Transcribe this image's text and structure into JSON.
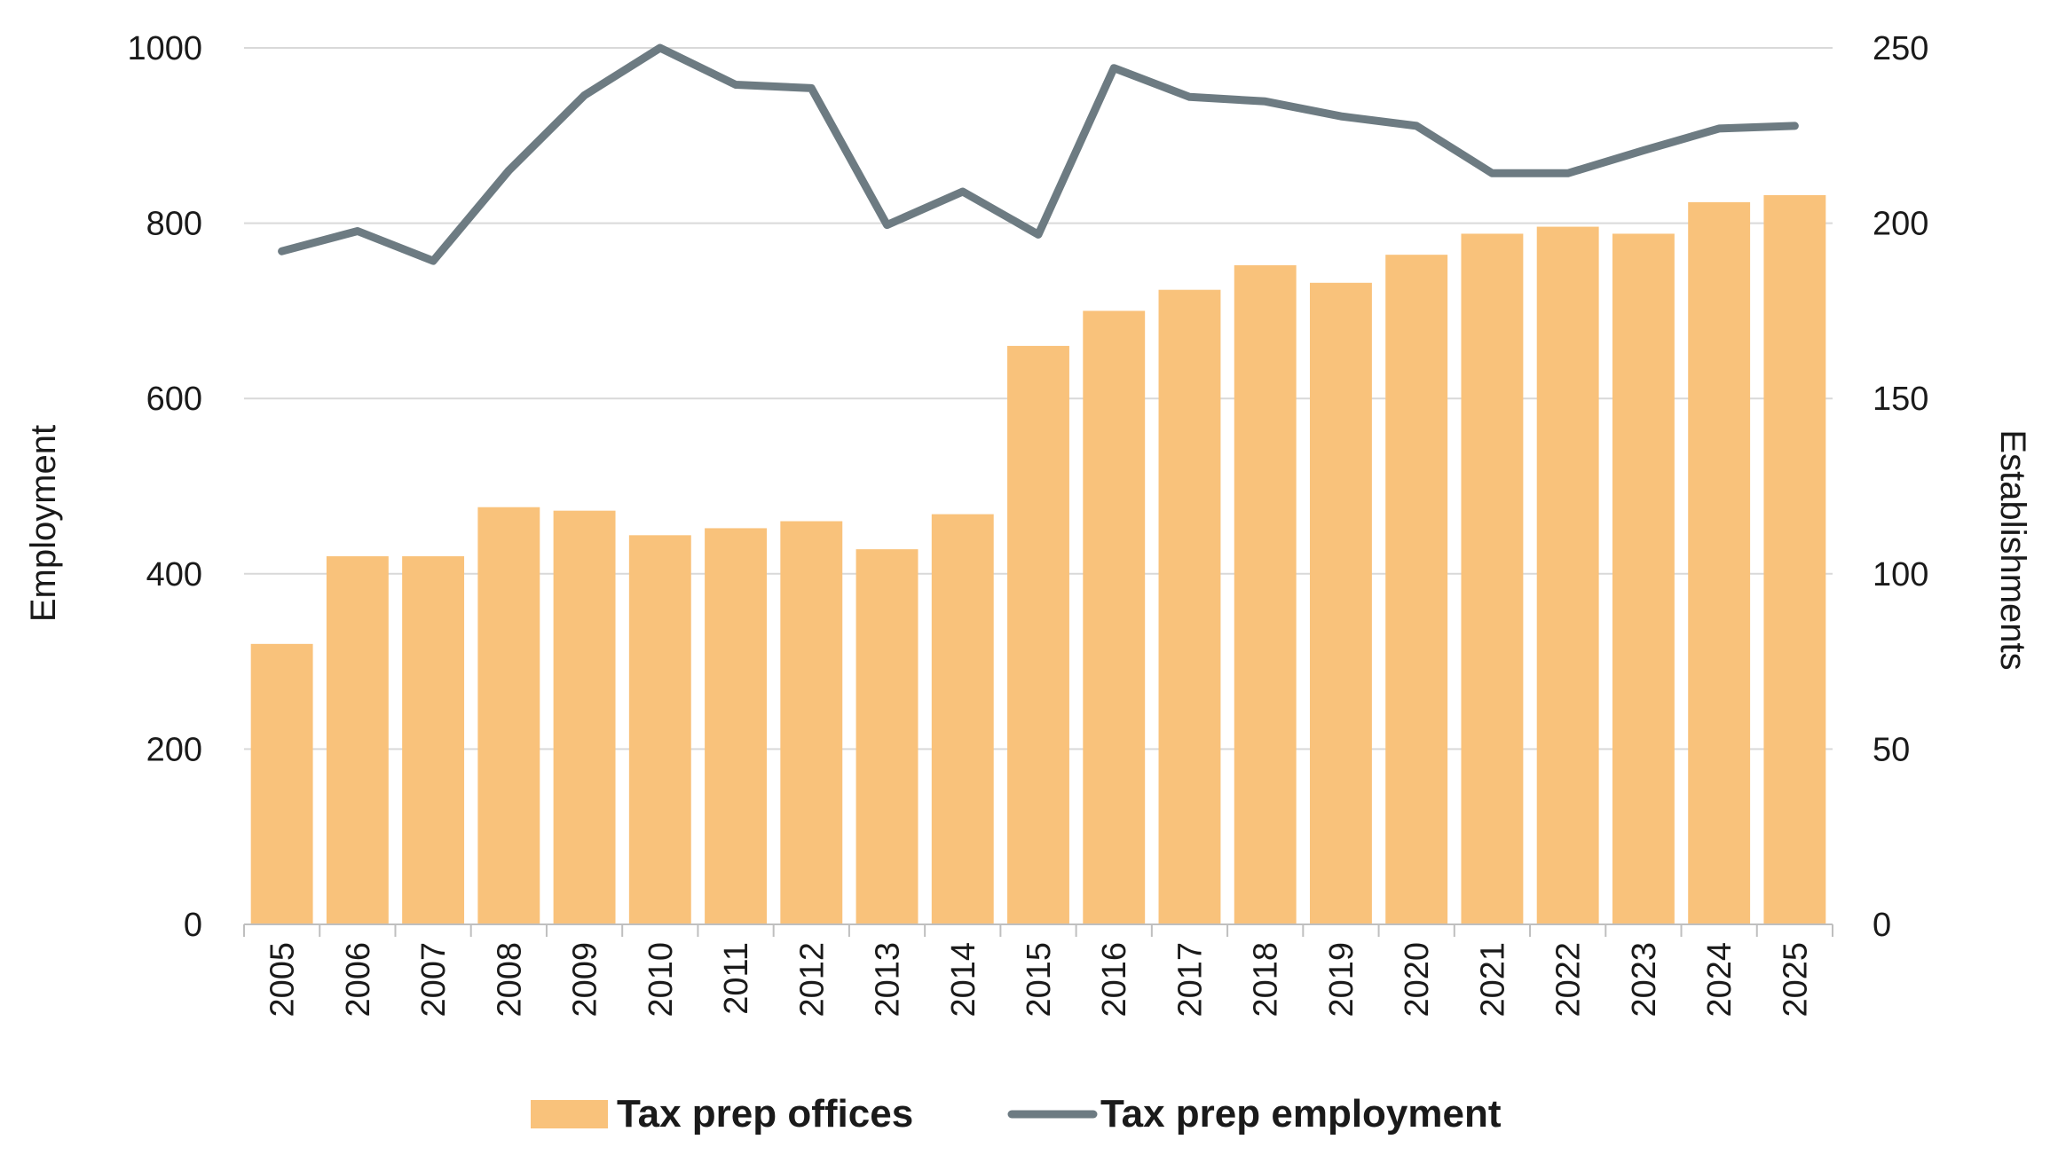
{
  "chart_data": {
    "type": "bar",
    "categories": [
      "2005",
      "2006",
      "2007",
      "2008",
      "2009",
      "2010",
      "2011",
      "2012",
      "2013",
      "2014",
      "2015",
      "2016",
      "2017",
      "2018",
      "2019",
      "2020",
      "2021",
      "2022",
      "2023",
      "2024",
      "2025"
    ],
    "series": [
      {
        "name": "Tax prep offices",
        "type": "bar",
        "axis": "right",
        "color": "#F9C27B",
        "values": [
          80,
          105,
          105,
          119,
          118,
          111,
          113,
          115,
          107,
          117,
          165,
          175,
          181,
          188,
          183,
          191,
          197,
          199,
          197,
          206,
          208
        ]
      },
      {
        "name": "Tax prep employment",
        "type": "line",
        "axis": "left",
        "color": "#6D7B82",
        "values": [
          768,
          791,
          757,
          860,
          946,
          1000,
          958,
          954,
          798,
          836,
          787,
          977,
          944,
          939,
          922,
          911,
          857,
          857,
          883,
          908,
          911
        ]
      }
    ],
    "y_left": {
      "label": "Employment",
      "min": 0,
      "max": 1000,
      "ticks": [
        0,
        200,
        400,
        600,
        800,
        1000
      ]
    },
    "y_right": {
      "label": "Establishments",
      "min": 0,
      "max": 250,
      "ticks": [
        0,
        50,
        100,
        150,
        200,
        250
      ]
    },
    "grid": true,
    "legend_position": "bottom-center",
    "x_tick_rotation": "vertical"
  }
}
